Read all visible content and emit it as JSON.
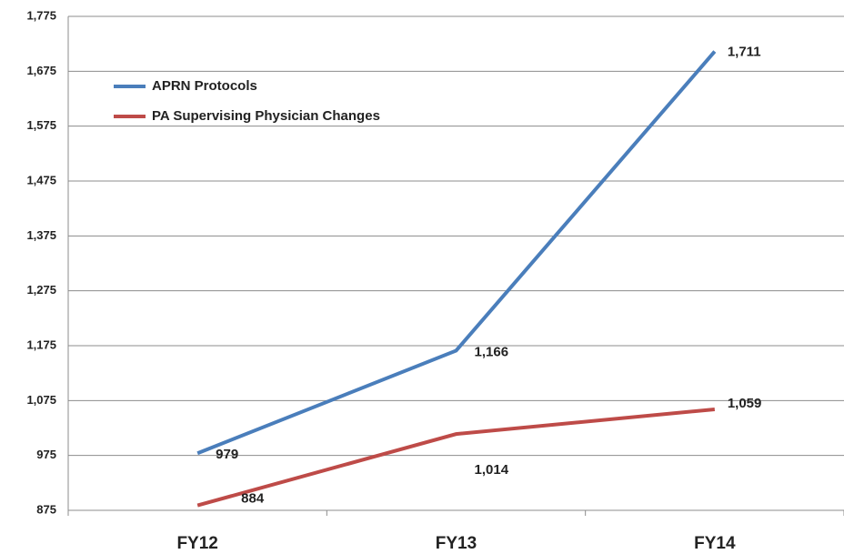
{
  "chart_data": {
    "type": "line",
    "categories": [
      "FY12",
      "FY13",
      "FY14"
    ],
    "series": [
      {
        "name": "APRN Protocols",
        "color": "#4a7ebb",
        "values": [
          979,
          1166,
          1711
        ],
        "value_labels": [
          "979",
          "1,166",
          "1,711"
        ]
      },
      {
        "name": "PA Supervising Physician Changes",
        "color": "#be4b48",
        "values": [
          884,
          1014,
          1059
        ],
        "value_labels": [
          "884",
          "1,014",
          "1,059"
        ]
      }
    ],
    "ylim": [
      875,
      1775
    ],
    "yticks": [
      875,
      975,
      {
        "value": 1075,
        "label": "1,075"
      },
      {
        "value": 1175,
        "label": "1,175"
      },
      {
        "value": 1275,
        "label": "1,275"
      },
      {
        "value": 1375,
        "label": "1,375"
      },
      {
        "value": 1475,
        "label": "1,475"
      },
      {
        "value": 1575,
        "label": "1,575"
      },
      {
        "value": 1675,
        "label": "1,675"
      },
      {
        "value": 1775,
        "label": "1,775"
      }
    ],
    "grid": true,
    "legend": "upper left"
  }
}
